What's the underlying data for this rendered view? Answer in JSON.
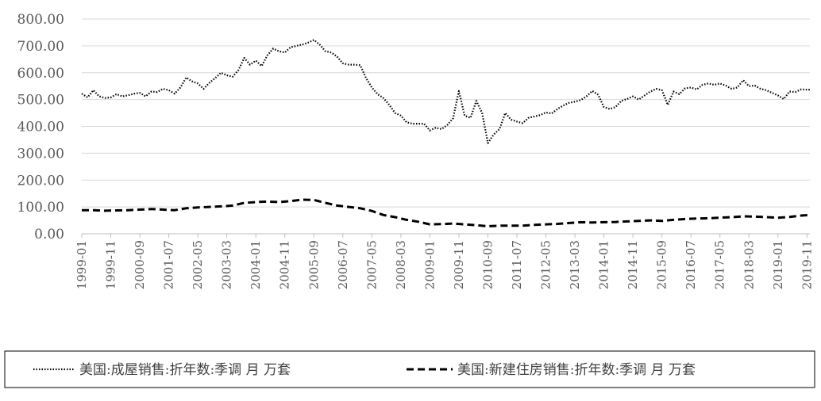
{
  "chart_data": {
    "type": "line",
    "title": "",
    "xlabel": "",
    "ylabel": "",
    "ylim": [
      0,
      800
    ],
    "yticks": [
      "0.00",
      "100.00",
      "200.00",
      "300.00",
      "400.00",
      "500.00",
      "600.00",
      "700.00",
      "800.00"
    ],
    "xticks": [
      "1999-01",
      "1999-11",
      "2000-09",
      "2001-07",
      "2002-05",
      "2003-03",
      "2004-01",
      "2004-11",
      "2005-09",
      "2006-07",
      "2007-05",
      "2008-03",
      "2009-01",
      "2009-11",
      "2010-09",
      "2011-07",
      "2012-05",
      "2013-03",
      "2014-01",
      "2014-11",
      "2015-09",
      "2016-07",
      "2017-05",
      "2018-03",
      "2019-01",
      "2019-11"
    ],
    "grid": "horizontal",
    "legend_position": "bottom",
    "series": [
      {
        "name": "美国:成屋销售:折年数:季调 月 万套",
        "style": "dotted",
        "color": "#000000",
        "points": [
          [
            "1999-01",
            522
          ],
          [
            "1999-03",
            508
          ],
          [
            "1999-05",
            535
          ],
          [
            "1999-07",
            512
          ],
          [
            "1999-09",
            506
          ],
          [
            "1999-11",
            508
          ],
          [
            "2000-01",
            520
          ],
          [
            "2000-03",
            512
          ],
          [
            "2000-05",
            516
          ],
          [
            "2000-07",
            522
          ],
          [
            "2000-09",
            525
          ],
          [
            "2000-11",
            512
          ],
          [
            "2001-01",
            530
          ],
          [
            "2001-03",
            528
          ],
          [
            "2001-05",
            540
          ],
          [
            "2001-07",
            535
          ],
          [
            "2001-09",
            522
          ],
          [
            "2001-11",
            545
          ],
          [
            "2002-01",
            582
          ],
          [
            "2002-03",
            568
          ],
          [
            "2002-05",
            560
          ],
          [
            "2002-07",
            540
          ],
          [
            "2002-09",
            562
          ],
          [
            "2002-11",
            580
          ],
          [
            "2003-01",
            600
          ],
          [
            "2003-03",
            590
          ],
          [
            "2003-05",
            585
          ],
          [
            "2003-07",
            610
          ],
          [
            "2003-09",
            655
          ],
          [
            "2003-11",
            630
          ],
          [
            "2004-01",
            645
          ],
          [
            "2004-03",
            625
          ],
          [
            "2004-05",
            665
          ],
          [
            "2004-07",
            690
          ],
          [
            "2004-09",
            680
          ],
          [
            "2004-11",
            675
          ],
          [
            "2005-01",
            695
          ],
          [
            "2005-03",
            700
          ],
          [
            "2005-05",
            705
          ],
          [
            "2005-07",
            712
          ],
          [
            "2005-09",
            722
          ],
          [
            "2005-11",
            705
          ],
          [
            "2006-01",
            680
          ],
          [
            "2006-03",
            675
          ],
          [
            "2006-05",
            660
          ],
          [
            "2006-07",
            635
          ],
          [
            "2006-09",
            630
          ],
          [
            "2006-11",
            630
          ],
          [
            "2007-01",
            628
          ],
          [
            "2007-03",
            580
          ],
          [
            "2007-05",
            545
          ],
          [
            "2007-07",
            520
          ],
          [
            "2007-09",
            505
          ],
          [
            "2007-11",
            480
          ],
          [
            "2008-01",
            450
          ],
          [
            "2008-03",
            440
          ],
          [
            "2008-05",
            415
          ],
          [
            "2008-07",
            410
          ],
          [
            "2008-09",
            410
          ],
          [
            "2008-11",
            410
          ],
          [
            "2009-01",
            385
          ],
          [
            "2009-03",
            395
          ],
          [
            "2009-05",
            390
          ],
          [
            "2009-07",
            405
          ],
          [
            "2009-09",
            430
          ],
          [
            "2009-11",
            532
          ],
          [
            "2010-01",
            440
          ],
          [
            "2010-03",
            432
          ],
          [
            "2010-05",
            495
          ],
          [
            "2010-07",
            450
          ],
          [
            "2010-09",
            338
          ],
          [
            "2010-11",
            370
          ],
          [
            "2011-01",
            390
          ],
          [
            "2011-03",
            450
          ],
          [
            "2011-05",
            425
          ],
          [
            "2011-07",
            418
          ],
          [
            "2011-09",
            412
          ],
          [
            "2011-11",
            432
          ],
          [
            "2012-01",
            437
          ],
          [
            "2012-03",
            442
          ],
          [
            "2012-05",
            452
          ],
          [
            "2012-07",
            448
          ],
          [
            "2012-09",
            465
          ],
          [
            "2012-11",
            478
          ],
          [
            "2013-01",
            488
          ],
          [
            "2013-03",
            492
          ],
          [
            "2013-05",
            498
          ],
          [
            "2013-07",
            512
          ],
          [
            "2013-09",
            532
          ],
          [
            "2013-11",
            518
          ],
          [
            "2014-01",
            472
          ],
          [
            "2014-03",
            465
          ],
          [
            "2014-05",
            472
          ],
          [
            "2014-07",
            495
          ],
          [
            "2014-09",
            502
          ],
          [
            "2014-11",
            512
          ],
          [
            "2015-01",
            500
          ],
          [
            "2015-03",
            515
          ],
          [
            "2015-05",
            530
          ],
          [
            "2015-07",
            540
          ],
          [
            "2015-09",
            535
          ],
          [
            "2015-11",
            480
          ],
          [
            "2016-01",
            530
          ],
          [
            "2016-03",
            520
          ],
          [
            "2016-05",
            542
          ],
          [
            "2016-07",
            545
          ],
          [
            "2016-09",
            538
          ],
          [
            "2016-11",
            555
          ],
          [
            "2017-01",
            560
          ],
          [
            "2017-03",
            555
          ],
          [
            "2017-05",
            560
          ],
          [
            "2017-07",
            552
          ],
          [
            "2017-09",
            540
          ],
          [
            "2017-11",
            545
          ],
          [
            "2018-01",
            572
          ],
          [
            "2018-03",
            550
          ],
          [
            "2018-05",
            552
          ],
          [
            "2018-07",
            540
          ],
          [
            "2018-09",
            535
          ],
          [
            "2018-11",
            525
          ],
          [
            "2019-01",
            515
          ],
          [
            "2019-03",
            502
          ],
          [
            "2019-05",
            530
          ],
          [
            "2019-07",
            528
          ],
          [
            "2019-09",
            538
          ],
          [
            "2019-11",
            537
          ],
          [
            "2019-12",
            537
          ]
        ]
      },
      {
        "name": "美国:新建住房销售:折年数:季调 月 万套",
        "style": "dashed",
        "color": "#000000",
        "points": [
          [
            "1999-01",
            88
          ],
          [
            "1999-05",
            88
          ],
          [
            "1999-09",
            86
          ],
          [
            "2000-01",
            87
          ],
          [
            "2000-05",
            88
          ],
          [
            "2000-09",
            90
          ],
          [
            "2001-01",
            92
          ],
          [
            "2001-05",
            90
          ],
          [
            "2001-09",
            88
          ],
          [
            "2002-01",
            95
          ],
          [
            "2002-05",
            98
          ],
          [
            "2002-09",
            100
          ],
          [
            "2003-01",
            102
          ],
          [
            "2003-05",
            105
          ],
          [
            "2003-09",
            115
          ],
          [
            "2004-01",
            118
          ],
          [
            "2004-05",
            120
          ],
          [
            "2004-09",
            118
          ],
          [
            "2005-01",
            122
          ],
          [
            "2005-05",
            127
          ],
          [
            "2005-09",
            126
          ],
          [
            "2006-01",
            115
          ],
          [
            "2006-05",
            105
          ],
          [
            "2006-09",
            100
          ],
          [
            "2007-01",
            95
          ],
          [
            "2007-05",
            85
          ],
          [
            "2007-09",
            70
          ],
          [
            "2008-01",
            62
          ],
          [
            "2008-05",
            52
          ],
          [
            "2008-09",
            45
          ],
          [
            "2009-01",
            35
          ],
          [
            "2009-05",
            36
          ],
          [
            "2009-09",
            38
          ],
          [
            "2010-01",
            35
          ],
          [
            "2010-05",
            32
          ],
          [
            "2010-09",
            28
          ],
          [
            "2011-01",
            30
          ],
          [
            "2011-05",
            30
          ],
          [
            "2011-09",
            30
          ],
          [
            "2012-01",
            33
          ],
          [
            "2012-05",
            35
          ],
          [
            "2012-09",
            37
          ],
          [
            "2013-01",
            40
          ],
          [
            "2013-05",
            43
          ],
          [
            "2013-09",
            42
          ],
          [
            "2014-01",
            43
          ],
          [
            "2014-05",
            44
          ],
          [
            "2014-09",
            46
          ],
          [
            "2015-01",
            48
          ],
          [
            "2015-05",
            50
          ],
          [
            "2015-09",
            48
          ],
          [
            "2016-01",
            52
          ],
          [
            "2016-05",
            55
          ],
          [
            "2016-09",
            57
          ],
          [
            "2017-01",
            58
          ],
          [
            "2017-05",
            60
          ],
          [
            "2017-09",
            62
          ],
          [
            "2018-01",
            65
          ],
          [
            "2018-05",
            64
          ],
          [
            "2018-09",
            62
          ],
          [
            "2019-01",
            60
          ],
          [
            "2019-05",
            63
          ],
          [
            "2019-09",
            68
          ],
          [
            "2019-12",
            70
          ]
        ]
      }
    ]
  }
}
